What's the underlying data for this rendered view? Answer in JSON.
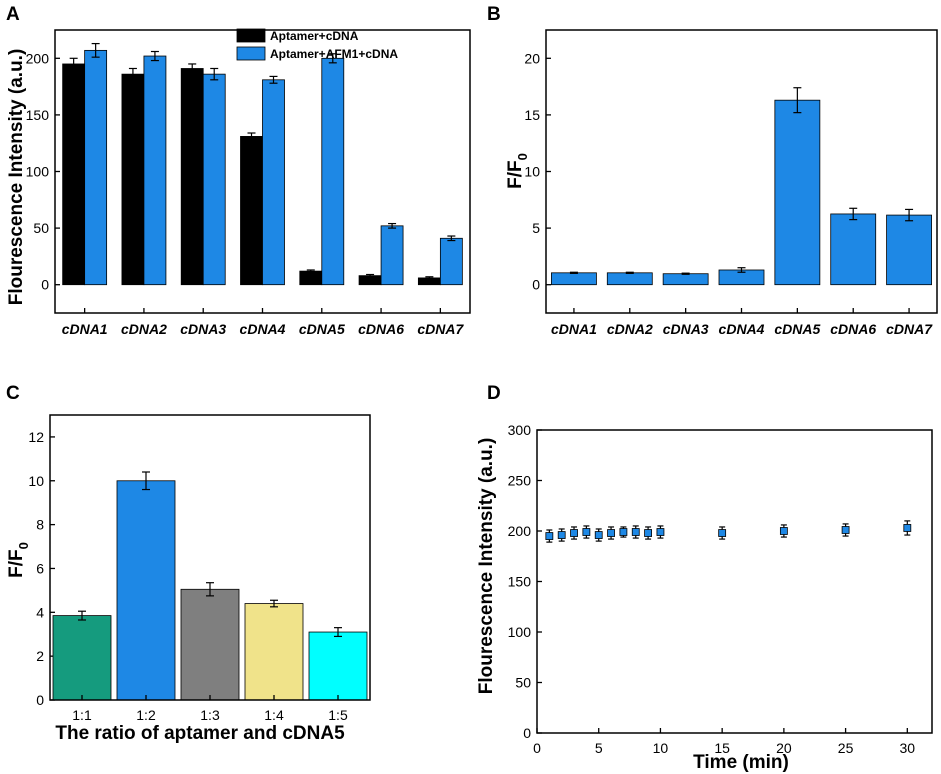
{
  "chart_data": [
    {
      "panel": "A",
      "type": "bar",
      "ylabel": "Flourescence Intensity (a.u.)",
      "xlabel": "",
      "categories": [
        "cDNA1",
        "cDNA2",
        "cDNA3",
        "cDNA4",
        "cDNA5",
        "cDNA6",
        "cDNA7"
      ],
      "ylim": [
        -25,
        225
      ],
      "yticks": [
        0,
        50,
        100,
        150,
        200
      ],
      "series": [
        {
          "name": "Aptamer+cDNA",
          "color": "#000000",
          "values": [
            195,
            186,
            191,
            131,
            12,
            8,
            6
          ],
          "errors": [
            5,
            5,
            4,
            3,
            1,
            1,
            1
          ]
        },
        {
          "name": "Aptamer+AFM1+cDNA",
          "color": "#1E88E5",
          "values": [
            207,
            202,
            186,
            181,
            200,
            52,
            41
          ],
          "errors": [
            6,
            4,
            5,
            3,
            4,
            2,
            2
          ]
        }
      ],
      "legend_position": "top-right"
    },
    {
      "panel": "B",
      "type": "bar",
      "ylabel": "F/F",
      "ylabel_sub": "0",
      "xlabel": "",
      "categories": [
        "cDNA1",
        "cDNA2",
        "cDNA3",
        "cDNA4",
        "cDNA5",
        "cDNA6",
        "cDNA7"
      ],
      "ylim": [
        -2.5,
        22.5
      ],
      "yticks": [
        0,
        5,
        10,
        15,
        20
      ],
      "series": [
        {
          "name": "F/F0",
          "color": "#1E88E5",
          "values": [
            1.05,
            1.05,
            0.97,
            1.3,
            16.3,
            6.25,
            6.15
          ],
          "errors": [
            0.05,
            0.05,
            0.05,
            0.2,
            1.1,
            0.5,
            0.5
          ]
        }
      ]
    },
    {
      "panel": "C",
      "type": "bar",
      "ylabel": "F/F",
      "ylabel_sub": "0",
      "xlabel": "The ratio of aptamer and cDNA5",
      "categories": [
        "1:1",
        "1:2",
        "1:3",
        "1:4",
        "1:5"
      ],
      "ylim": [
        0,
        13
      ],
      "yticks": [
        0,
        2,
        4,
        6,
        8,
        10,
        12
      ],
      "series": [
        {
          "name": "F/F0",
          "values": [
            3.85,
            10.0,
            5.05,
            4.4,
            3.1
          ],
          "errors": [
            0.2,
            0.4,
            0.3,
            0.15,
            0.2
          ],
          "colors": [
            "#159B7E",
            "#1E88E5",
            "#7F7F7F",
            "#F0E38A",
            "#00FFFF"
          ]
        }
      ]
    },
    {
      "panel": "D",
      "type": "scatter",
      "ylabel": "Flourescence Intensity (a.u.)",
      "xlabel": "Time (min)",
      "xlim": [
        0,
        32
      ],
      "ylim": [
        0,
        300
      ],
      "xticks": [
        0,
        5,
        10,
        15,
        20,
        25,
        30
      ],
      "yticks": [
        0,
        50,
        100,
        150,
        200,
        250,
        300
      ],
      "series": [
        {
          "name": "Fluorescence",
          "color": "#1E88E5",
          "x": [
            1,
            2,
            3,
            4,
            5,
            6,
            7,
            8,
            9,
            10,
            15,
            20,
            25,
            30
          ],
          "y": [
            195,
            196,
            198,
            199,
            196,
            198,
            199,
            199,
            198,
            199,
            198,
            200,
            201,
            203
          ],
          "errors": [
            6,
            6,
            6,
            6,
            6,
            6,
            5,
            6,
            6,
            6,
            6,
            6,
            6,
            7
          ]
        }
      ]
    }
  ]
}
